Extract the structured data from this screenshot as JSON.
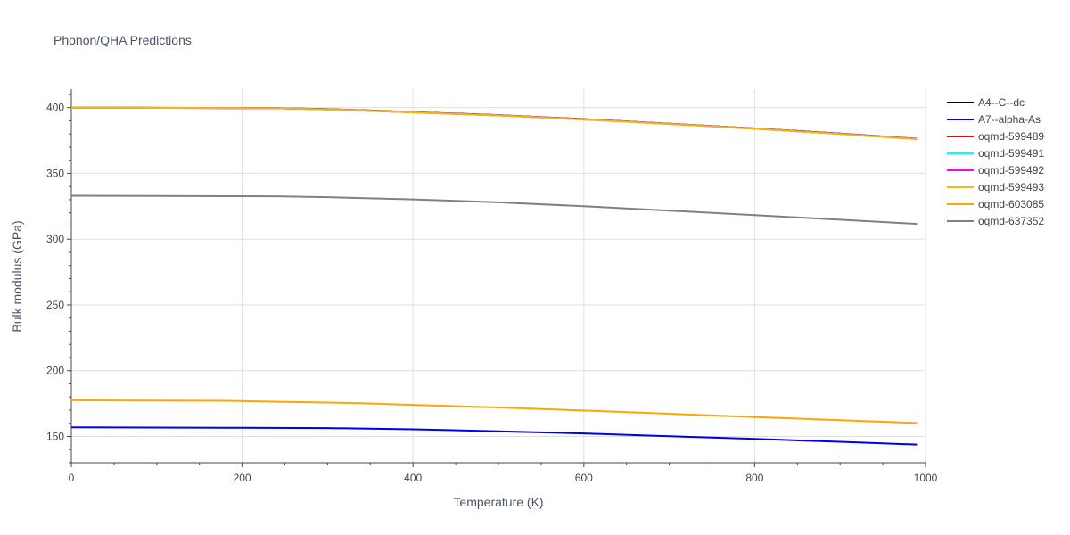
{
  "chart_data": {
    "type": "line",
    "title": "Phonon/QHA Predictions",
    "xlabel": "Temperature (K)",
    "ylabel": "Bulk modulus (GPa)",
    "xlim": [
      0,
      1000
    ],
    "ylim": [
      130,
      414
    ],
    "xticks": [
      0,
      200,
      400,
      600,
      800,
      1000
    ],
    "yticks": [
      150,
      200,
      250,
      300,
      350,
      400
    ],
    "grid": true,
    "legend_position": "right",
    "series": [
      {
        "name": "A4--C--dc",
        "color": "#000000",
        "x": [
          0,
          200,
          240,
          300,
          350,
          400,
          500,
          600,
          700,
          800,
          900,
          990
        ],
        "y": [
          400,
          399.7,
          399.6,
          398.8,
          397.8,
          396.6,
          394.3,
          391.2,
          387.8,
          384.2,
          380.3,
          376.3
        ]
      },
      {
        "name": "A7--alpha-As",
        "color": "#0000ee",
        "x": [
          0,
          200,
          300,
          400,
          500,
          600,
          700,
          800,
          900,
          990
        ],
        "y": [
          157,
          156.6,
          156.4,
          155.4,
          153.9,
          152.3,
          150.2,
          148.1,
          145.9,
          143.8
        ]
      },
      {
        "name": "oqmd-599489",
        "color": "#ff0000",
        "x": [
          0,
          200,
          240,
          300,
          350,
          400,
          500,
          600,
          700,
          800,
          900,
          990
        ],
        "y": [
          400,
          399.6,
          399.5,
          398.7,
          397.6,
          396.4,
          394.1,
          391.0,
          387.6,
          384.0,
          380.1,
          376.1
        ]
      },
      {
        "name": "oqmd-599491",
        "color": "#00ffff",
        "x": [
          0,
          200,
          240,
          300,
          350,
          400,
          500,
          600,
          700,
          800,
          900,
          990
        ],
        "y": [
          400,
          399.6,
          399.5,
          398.7,
          397.6,
          396.4,
          394.1,
          391.0,
          387.6,
          384.0,
          380.1,
          376.1
        ]
      },
      {
        "name": "oqmd-599492",
        "color": "#ff00ff",
        "x": [
          0,
          200,
          240,
          300,
          350,
          400,
          500,
          600,
          700,
          800,
          900,
          990
        ],
        "y": [
          400,
          399.6,
          399.5,
          398.7,
          397.6,
          396.4,
          394.1,
          391.0,
          387.6,
          384.0,
          380.1,
          376.1
        ]
      },
      {
        "name": "oqmd-599493",
        "color": "#f5b70f",
        "x": [
          0,
          200,
          240,
          300,
          350,
          400,
          500,
          600,
          700,
          800,
          900,
          990
        ],
        "y": [
          400,
          399.6,
          399.5,
          398.6,
          397.5,
          396.3,
          394.0,
          390.9,
          387.5,
          383.9,
          380.0,
          376.0
        ]
      },
      {
        "name": "oqmd-603085",
        "color": "#ffa500",
        "x": [
          0,
          180,
          250,
          340,
          400,
          500,
          600,
          700,
          800,
          900,
          990
        ],
        "y": [
          177.5,
          177.1,
          176.3,
          175.3,
          174.0,
          172.0,
          169.7,
          167.3,
          164.8,
          162.4,
          160.2
        ]
      },
      {
        "name": "oqmd-637352",
        "color": "#808080",
        "x": [
          0,
          100,
          240,
          300,
          400,
          500,
          600,
          700,
          800,
          900,
          990
        ],
        "y": [
          333,
          332.8,
          332.6,
          331.9,
          330.2,
          328.0,
          325.0,
          321.7,
          318.3,
          314.8,
          311.6
        ]
      }
    ]
  }
}
